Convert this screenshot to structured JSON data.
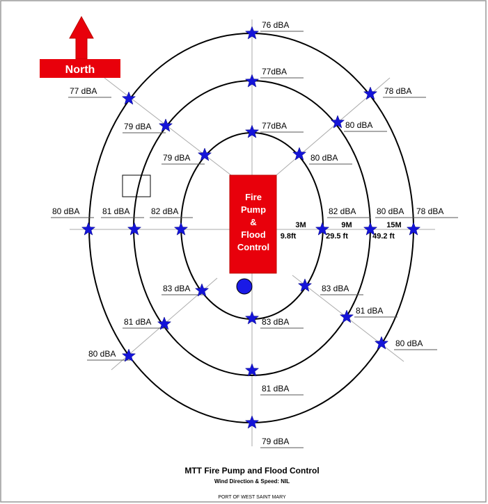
{
  "north_label": "North",
  "center_box": {
    "lines": [
      "Fire",
      "Pump",
      "&",
      "Flood",
      "Control"
    ]
  },
  "readings": [
    "76 dBA",
    "77dBA",
    "77dBA",
    "77 dBA",
    "79 dBA",
    "79 dBA",
    "78 dBA",
    "80 dBA",
    "80 dBA",
    "80 dBA",
    "81 dBA",
    "82 dBA",
    "82 dBA",
    "80 dBA",
    "78 dBA",
    "83 dBA",
    "81 dBA",
    "80 dBA",
    "83 dBA",
    "81 dBA",
    "80 dBA",
    "83 dBA",
    "81 dBA",
    "79 dBA"
  ],
  "distances": [
    {
      "meters": "3M",
      "feet": "9.8ft"
    },
    {
      "meters": "9M",
      "feet": "29.5 ft"
    },
    {
      "meters": "15M",
      "feet": "49.2 ft"
    }
  ],
  "footer": {
    "title": "MTT Fire Pump and Flood Control",
    "subtitle": "Wind Direction & Speed: NIL",
    "organization": "PORT OF WEST SAINT MARY"
  }
}
